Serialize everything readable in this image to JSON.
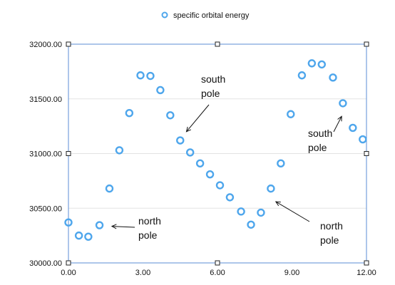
{
  "chart_data": {
    "type": "scatter",
    "title": "",
    "xlabel": "",
    "ylabel": "",
    "xlim": [
      0,
      12
    ],
    "ylim": [
      30000,
      32000
    ],
    "x_ticks": [
      "0.00",
      "3.00",
      "6.00",
      "9.00",
      "12.00"
    ],
    "y_ticks": [
      "30000.00",
      "30500.00",
      "31000.00",
      "31500.00",
      "32000.00"
    ],
    "grid": "horizontal",
    "legend_position": "top-center",
    "series": [
      {
        "name": "specific orbital energy",
        "color": "#4ea6ec",
        "marker": "open-circle",
        "points": [
          {
            "x": 0.0,
            "y": 30370
          },
          {
            "x": 0.42,
            "y": 30250
          },
          {
            "x": 0.8,
            "y": 30240
          },
          {
            "x": 1.25,
            "y": 30345
          },
          {
            "x": 1.65,
            "y": 30680
          },
          {
            "x": 2.05,
            "y": 31030
          },
          {
            "x": 2.45,
            "y": 31370
          },
          {
            "x": 2.9,
            "y": 31715
          },
          {
            "x": 3.3,
            "y": 31710
          },
          {
            "x": 3.7,
            "y": 31580
          },
          {
            "x": 4.1,
            "y": 31350
          },
          {
            "x": 4.5,
            "y": 31120
          },
          {
            "x": 4.9,
            "y": 31010
          },
          {
            "x": 5.3,
            "y": 30910
          },
          {
            "x": 5.7,
            "y": 30810
          },
          {
            "x": 6.1,
            "y": 30710
          },
          {
            "x": 6.5,
            "y": 30600
          },
          {
            "x": 6.95,
            "y": 30470
          },
          {
            "x": 7.35,
            "y": 30350
          },
          {
            "x": 7.75,
            "y": 30460
          },
          {
            "x": 8.15,
            "y": 30680
          },
          {
            "x": 8.55,
            "y": 30910
          },
          {
            "x": 8.95,
            "y": 31360
          },
          {
            "x": 9.4,
            "y": 31715
          },
          {
            "x": 9.8,
            "y": 31825
          },
          {
            "x": 10.2,
            "y": 31815
          },
          {
            "x": 10.65,
            "y": 31695
          },
          {
            "x": 11.05,
            "y": 31460
          },
          {
            "x": 11.45,
            "y": 31235
          },
          {
            "x": 11.85,
            "y": 31130
          }
        ]
      }
    ],
    "annotations": [
      {
        "lines": [
          "south",
          "pole"
        ],
        "target": {
          "x": 4.75,
          "y": 31200
        }
      },
      {
        "lines": [
          "north",
          "pole"
        ],
        "target": {
          "x": 1.75,
          "y": 30335
        }
      },
      {
        "lines": [
          "south",
          "pole"
        ],
        "target": {
          "x": 11.0,
          "y": 31340
        }
      },
      {
        "lines": [
          "north",
          "pole"
        ],
        "target": {
          "x": 8.35,
          "y": 30560
        }
      }
    ]
  }
}
